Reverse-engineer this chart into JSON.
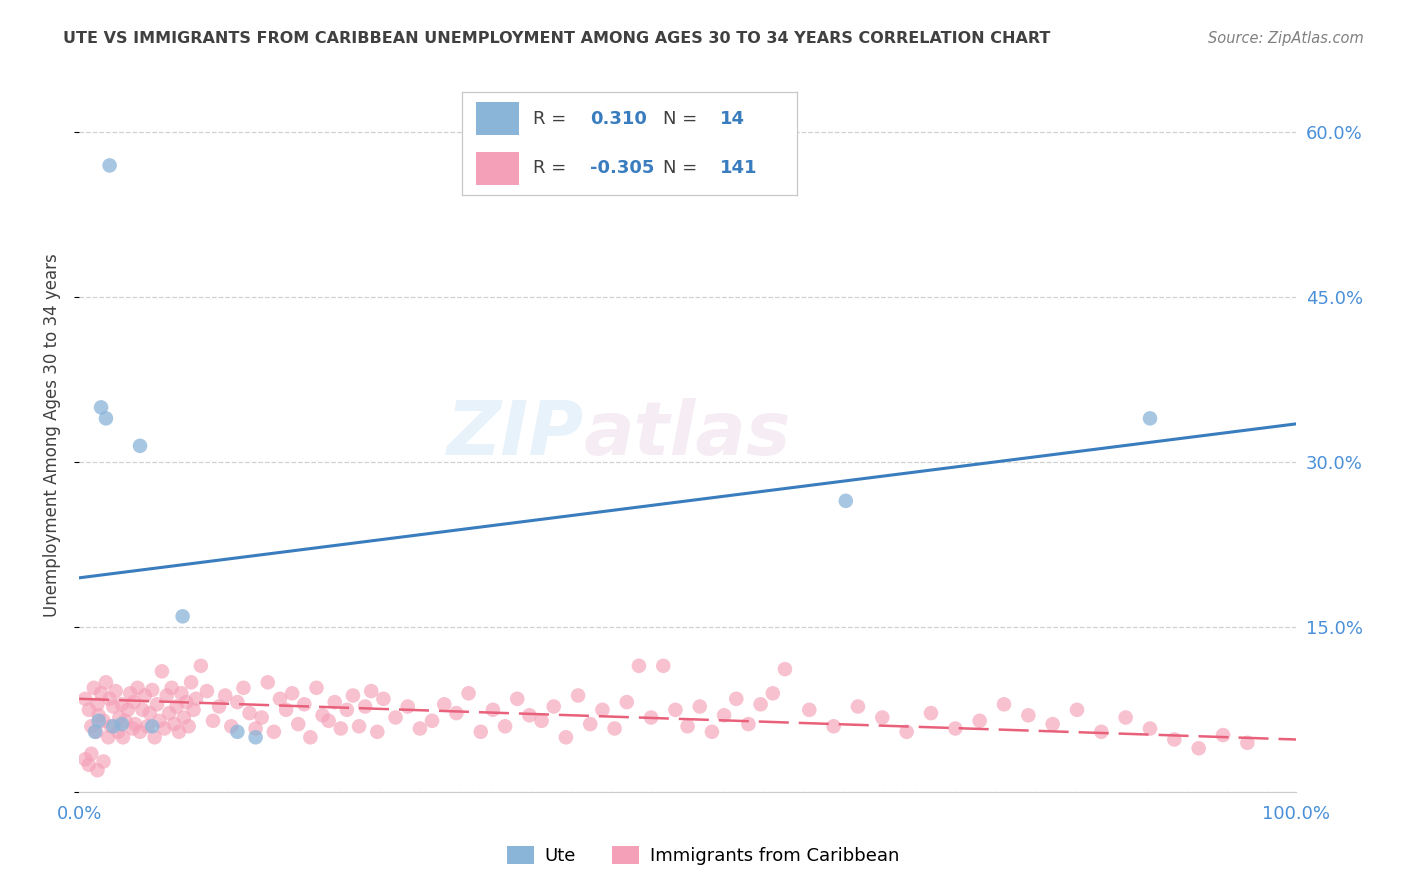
{
  "title": "UTE VS IMMIGRANTS FROM CARIBBEAN UNEMPLOYMENT AMONG AGES 30 TO 34 YEARS CORRELATION CHART",
  "source": "Source: ZipAtlas.com",
  "ylabel": "Unemployment Among Ages 30 to 34 years",
  "xlim": [
    0.0,
    1.0
  ],
  "ylim": [
    0.0,
    0.65
  ],
  "xticks": [
    0.0,
    0.2,
    0.4,
    0.6,
    0.8,
    1.0
  ],
  "xticklabels": [
    "0.0%",
    "",
    "",
    "",
    "",
    "100.0%"
  ],
  "yticks": [
    0.0,
    0.15,
    0.3,
    0.45,
    0.6
  ],
  "yticklabels_right": [
    "",
    "15.0%",
    "30.0%",
    "45.0%",
    "60.0%"
  ],
  "watermark_zip": "ZIP",
  "watermark_atlas": "atlas",
  "blue_scatter_color": "#8ab4d8",
  "pink_scatter_color": "#f4a0b8",
  "blue_line_color": "#3a7dbf",
  "pink_line_color": "#e8607a",
  "blue_line_x": [
    0.0,
    1.0
  ],
  "blue_line_y": [
    0.195,
    0.335
  ],
  "pink_line_x": [
    0.0,
    1.0
  ],
  "pink_line_y": [
    0.085,
    0.048
  ],
  "ute_points": [
    [
      0.013,
      0.055
    ],
    [
      0.016,
      0.065
    ],
    [
      0.018,
      0.35
    ],
    [
      0.022,
      0.34
    ],
    [
      0.025,
      0.57
    ],
    [
      0.028,
      0.06
    ],
    [
      0.035,
      0.062
    ],
    [
      0.05,
      0.315
    ],
    [
      0.06,
      0.06
    ],
    [
      0.085,
      0.16
    ],
    [
      0.13,
      0.055
    ],
    [
      0.145,
      0.05
    ],
    [
      0.88,
      0.34
    ],
    [
      0.63,
      0.265
    ]
  ],
  "caribbean_points": [
    [
      0.005,
      0.085
    ],
    [
      0.008,
      0.075
    ],
    [
      0.01,
      0.06
    ],
    [
      0.012,
      0.095
    ],
    [
      0.014,
      0.055
    ],
    [
      0.015,
      0.08
    ],
    [
      0.016,
      0.07
    ],
    [
      0.018,
      0.09
    ],
    [
      0.02,
      0.065
    ],
    [
      0.022,
      0.1
    ],
    [
      0.024,
      0.05
    ],
    [
      0.025,
      0.085
    ],
    [
      0.026,
      0.06
    ],
    [
      0.028,
      0.078
    ],
    [
      0.03,
      0.092
    ],
    [
      0.032,
      0.055
    ],
    [
      0.033,
      0.068
    ],
    [
      0.035,
      0.08
    ],
    [
      0.036,
      0.05
    ],
    [
      0.038,
      0.065
    ],
    [
      0.04,
      0.075
    ],
    [
      0.042,
      0.09
    ],
    [
      0.044,
      0.058
    ],
    [
      0.045,
      0.082
    ],
    [
      0.046,
      0.062
    ],
    [
      0.048,
      0.095
    ],
    [
      0.05,
      0.055
    ],
    [
      0.052,
      0.075
    ],
    [
      0.054,
      0.088
    ],
    [
      0.056,
      0.06
    ],
    [
      0.058,
      0.072
    ],
    [
      0.06,
      0.093
    ],
    [
      0.062,
      0.05
    ],
    [
      0.064,
      0.08
    ],
    [
      0.066,
      0.065
    ],
    [
      0.068,
      0.11
    ],
    [
      0.07,
      0.058
    ],
    [
      0.072,
      0.088
    ],
    [
      0.074,
      0.072
    ],
    [
      0.076,
      0.095
    ],
    [
      0.078,
      0.062
    ],
    [
      0.08,
      0.078
    ],
    [
      0.082,
      0.055
    ],
    [
      0.084,
      0.09
    ],
    [
      0.086,
      0.068
    ],
    [
      0.088,
      0.082
    ],
    [
      0.09,
      0.06
    ],
    [
      0.092,
      0.1
    ],
    [
      0.094,
      0.075
    ],
    [
      0.096,
      0.085
    ],
    [
      0.1,
      0.115
    ],
    [
      0.105,
      0.092
    ],
    [
      0.11,
      0.065
    ],
    [
      0.115,
      0.078
    ],
    [
      0.12,
      0.088
    ],
    [
      0.125,
      0.06
    ],
    [
      0.13,
      0.082
    ],
    [
      0.135,
      0.095
    ],
    [
      0.14,
      0.072
    ],
    [
      0.145,
      0.058
    ],
    [
      0.15,
      0.068
    ],
    [
      0.155,
      0.1
    ],
    [
      0.16,
      0.055
    ],
    [
      0.165,
      0.085
    ],
    [
      0.17,
      0.075
    ],
    [
      0.175,
      0.09
    ],
    [
      0.18,
      0.062
    ],
    [
      0.185,
      0.08
    ],
    [
      0.19,
      0.05
    ],
    [
      0.195,
      0.095
    ],
    [
      0.2,
      0.07
    ],
    [
      0.205,
      0.065
    ],
    [
      0.21,
      0.082
    ],
    [
      0.215,
      0.058
    ],
    [
      0.22,
      0.075
    ],
    [
      0.225,
      0.088
    ],
    [
      0.23,
      0.06
    ],
    [
      0.235,
      0.078
    ],
    [
      0.24,
      0.092
    ],
    [
      0.245,
      0.055
    ],
    [
      0.25,
      0.085
    ],
    [
      0.26,
      0.068
    ],
    [
      0.27,
      0.078
    ],
    [
      0.28,
      0.058
    ],
    [
      0.29,
      0.065
    ],
    [
      0.3,
      0.08
    ],
    [
      0.31,
      0.072
    ],
    [
      0.32,
      0.09
    ],
    [
      0.33,
      0.055
    ],
    [
      0.34,
      0.075
    ],
    [
      0.35,
      0.06
    ],
    [
      0.36,
      0.085
    ],
    [
      0.37,
      0.07
    ],
    [
      0.38,
      0.065
    ],
    [
      0.39,
      0.078
    ],
    [
      0.4,
      0.05
    ],
    [
      0.41,
      0.088
    ],
    [
      0.42,
      0.062
    ],
    [
      0.43,
      0.075
    ],
    [
      0.44,
      0.058
    ],
    [
      0.45,
      0.082
    ],
    [
      0.46,
      0.115
    ],
    [
      0.47,
      0.068
    ],
    [
      0.48,
      0.115
    ],
    [
      0.49,
      0.075
    ],
    [
      0.5,
      0.06
    ],
    [
      0.51,
      0.078
    ],
    [
      0.52,
      0.055
    ],
    [
      0.53,
      0.07
    ],
    [
      0.54,
      0.085
    ],
    [
      0.55,
      0.062
    ],
    [
      0.56,
      0.08
    ],
    [
      0.57,
      0.09
    ],
    [
      0.58,
      0.112
    ],
    [
      0.6,
      0.075
    ],
    [
      0.62,
      0.06
    ],
    [
      0.64,
      0.078
    ],
    [
      0.66,
      0.068
    ],
    [
      0.68,
      0.055
    ],
    [
      0.7,
      0.072
    ],
    [
      0.72,
      0.058
    ],
    [
      0.74,
      0.065
    ],
    [
      0.76,
      0.08
    ],
    [
      0.78,
      0.07
    ],
    [
      0.8,
      0.062
    ],
    [
      0.82,
      0.075
    ],
    [
      0.84,
      0.055
    ],
    [
      0.86,
      0.068
    ],
    [
      0.88,
      0.058
    ],
    [
      0.9,
      0.048
    ],
    [
      0.92,
      0.04
    ],
    [
      0.94,
      0.052
    ],
    [
      0.96,
      0.045
    ],
    [
      0.005,
      0.03
    ],
    [
      0.008,
      0.025
    ],
    [
      0.01,
      0.035
    ],
    [
      0.015,
      0.02
    ],
    [
      0.02,
      0.028
    ]
  ],
  "background_color": "#ffffff",
  "grid_color": "#d0d0d0",
  "tick_color": "#4a90d9",
  "title_color": "#404040",
  "ylabel_color": "#404040",
  "source_color": "#808080"
}
